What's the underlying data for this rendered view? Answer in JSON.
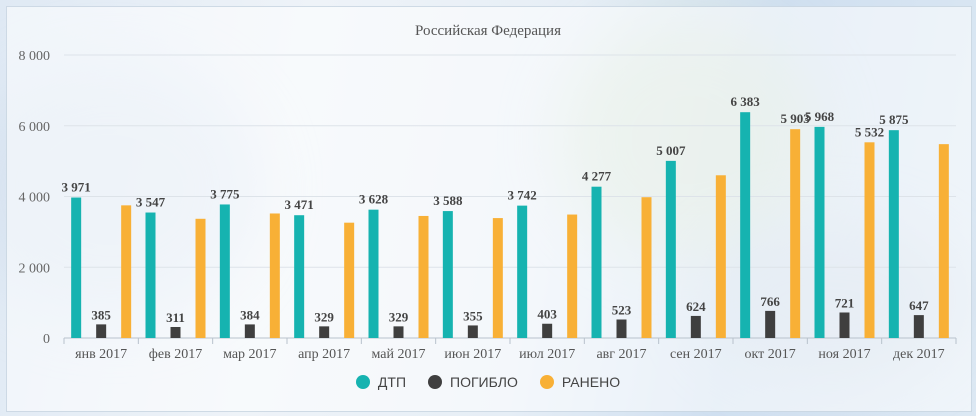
{
  "colors": {
    "dtp": "#16b3b0",
    "pogiblo": "#3f3f3f",
    "raneno": "#f8b036"
  },
  "chart_data": {
    "type": "bar",
    "title": "Российская Федерация",
    "categories": [
      "янв 2017",
      "фев 2017",
      "мар 2017",
      "апр 2017",
      "май 2017",
      "июн 2017",
      "июл 2017",
      "авг 2017",
      "сен 2017",
      "окт 2017",
      "ноя 2017",
      "дек 2017"
    ],
    "series": [
      {
        "name": "ДТП",
        "values": [
          3971,
          3547,
          3775,
          3471,
          3628,
          3588,
          3742,
          4277,
          5007,
          6383,
          5968,
          5875
        ],
        "labels": [
          "3 971",
          "3 547",
          "3 775",
          "3 471",
          "3 628",
          "3 588",
          "3 742",
          "4 277",
          "5 007",
          "6 383",
          "5 968",
          "5 875"
        ]
      },
      {
        "name": "ПОГИБЛО",
        "values": [
          385,
          311,
          384,
          329,
          329,
          355,
          403,
          523,
          624,
          766,
          721,
          647
        ],
        "labels": [
          "385",
          "311",
          "384",
          "329",
          "329",
          "355",
          "403",
          "523",
          "624",
          "766",
          "721",
          "647"
        ]
      },
      {
        "name": "РАНЕНО",
        "values": [
          3750,
          3370,
          3520,
          3260,
          3450,
          3390,
          3490,
          3980,
          4600,
          5903,
          5532,
          5480
        ],
        "labels": [
          "",
          "",
          "",
          "",
          "",
          "",
          "",
          "",
          "",
          "5 903",
          "5 532",
          ""
        ]
      }
    ],
    "yticks": [
      "0",
      "2 000",
      "4 000",
      "6 000",
      "8 000"
    ],
    "ylim": [
      0,
      8000
    ],
    "grid": true,
    "legend": "bottom"
  }
}
